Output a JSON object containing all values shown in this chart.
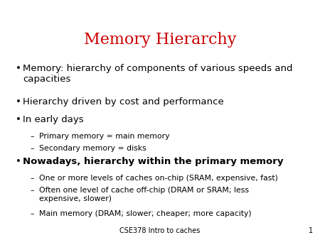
{
  "title": "Memory Hierarchy",
  "title_color": "#cc0000",
  "title_fontsize": 16,
  "background_color": "#ffffff",
  "footer_text": "CSE378 Intro to caches",
  "footer_number": "1",
  "footer_fontsize": 7,
  "bullet_color": "#000000",
  "text_color": "#000000",
  "bullet_items": [
    {
      "level": 0,
      "text": "Memory: hierarchy of components of various speeds and\ncapacities",
      "bold": false,
      "lines": 2
    },
    {
      "level": 0,
      "text": "Hierarchy driven by cost and performance",
      "bold": false,
      "lines": 1
    },
    {
      "level": 0,
      "text": "In early days",
      "bold": false,
      "lines": 1
    },
    {
      "level": 1,
      "text": "Primary memory = main memory",
      "bold": false,
      "lines": 1
    },
    {
      "level": 1,
      "text": "Secondary memory = disks",
      "bold": false,
      "lines": 1
    },
    {
      "level": 0,
      "text": "Nowadays, hierarchy within the primary memory",
      "bold": true,
      "lines": 1
    },
    {
      "level": 1,
      "text": "One or more levels of caches on-chip (SRAM, expensive, fast)",
      "bold": false,
      "lines": 1
    },
    {
      "level": 1,
      "text": "Often one level of cache off-chip (DRAM or SRAM; less\nexpensive, slower)",
      "bold": false,
      "lines": 2
    },
    {
      "level": 1,
      "text": "Main memory (DRAM; slower; cheaper; more capacity)",
      "bold": false,
      "lines": 1
    }
  ]
}
